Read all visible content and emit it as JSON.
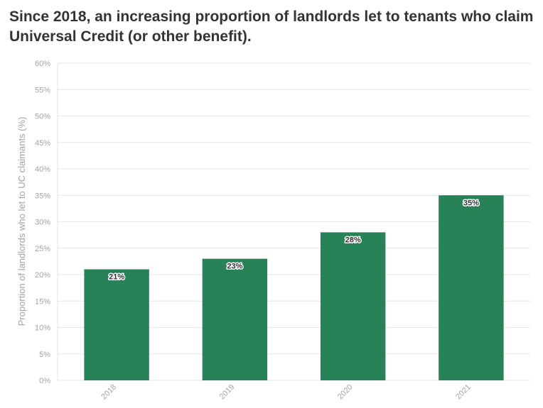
{
  "title": "Since 2018, an increasing proportion of landlords let to tenants who claim Universal Credit (or other benefit).",
  "chart_data": {
    "type": "bar",
    "categories": [
      "2018",
      "2019",
      "2020",
      "2021"
    ],
    "values": [
      21,
      23,
      28,
      35
    ],
    "data_labels": [
      "21%",
      "23%",
      "28%",
      "35%"
    ],
    "ylabel": "Proportion of landlords who let to UC claimants (%)",
    "xlabel": "",
    "ylim": [
      0,
      60
    ],
    "yticks": [
      0,
      5,
      10,
      15,
      20,
      25,
      30,
      35,
      40,
      45,
      50,
      55,
      60
    ],
    "ytick_labels": [
      "0%",
      "5%",
      "10%",
      "15%",
      "20%",
      "25%",
      "30%",
      "35%",
      "40%",
      "45%",
      "50%",
      "55%",
      "60%"
    ],
    "grid": true,
    "bar_color": "#278257"
  }
}
